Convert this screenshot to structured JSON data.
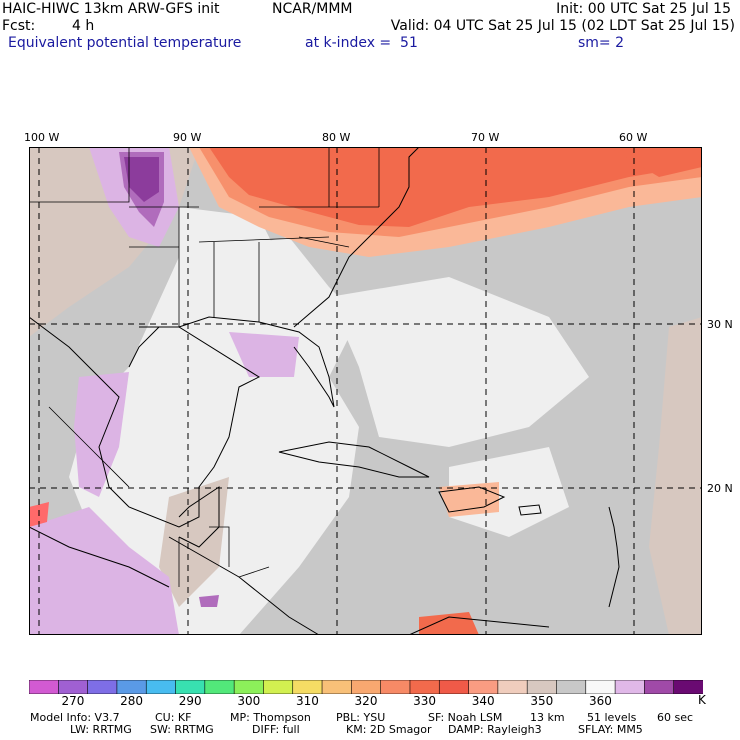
{
  "header": {
    "model_title": "HAIC-HIWC 13km ARW-GFS init",
    "center": "NCAR/MMM",
    "init": "Init: 00 UTC Sat 25 Jul 15",
    "fcst_label": "Fcst:",
    "fcst_value": "4 h",
    "valid": "Valid: 04 UTC Sat 25 Jul 15 (02 LDT Sat 25 Jul 15)",
    "field": "Equivalent potential temperature",
    "level": "at k-index =  51",
    "smooth": "sm= 2"
  },
  "map": {
    "lon_labels": [
      "100 W",
      "90 W",
      "80 W",
      "70 W",
      "60 W"
    ],
    "lat_labels": [
      "30 N",
      "20 N"
    ],
    "colors": {
      "warm_red": "#f26a4c",
      "warm_orange": "#f7906c",
      "warm_peach": "#fab898",
      "neutral_tan": "#d7c8c0",
      "neutral_gray": "#c8c8c8",
      "light_gray": "#efefef",
      "light_purple": "#dcb4e4",
      "mid_purple": "#b06cbc",
      "dark_purple": "#8c3c9c",
      "pink": "#ff6a6a"
    }
  },
  "colorbar": {
    "colors": [
      "#d25ad2",
      "#a060d2",
      "#7e6ee6",
      "#5a9ae6",
      "#48bcf0",
      "#38e0b0",
      "#52e87a",
      "#8cf05a",
      "#d2f050",
      "#f5dc64",
      "#f8c078",
      "#f8a870",
      "#f78a66",
      "#f26a4c",
      "#f05a48",
      "#fa9c82",
      "#f0cdbd",
      "#d8c8c0",
      "#c8c8c8",
      "#f8f8f8",
      "#e0b8e8",
      "#a04aa8",
      "#6a0a72"
    ],
    "labels": [
      "270",
      "280",
      "290",
      "300",
      "310",
      "320",
      "330",
      "340",
      "350",
      "360"
    ],
    "unit": "K"
  },
  "footer": {
    "line1": [
      "Model Info: V3.7",
      "CU: KF",
      "MP: Thompson",
      "PBL: YSU",
      "SF: Noah LSM",
      "13 km",
      "51 levels",
      "60 sec"
    ],
    "line2": [
      "LW: RRTMG",
      "SW: RRTMG",
      "DIFF: full",
      "KM: 2D Smagor",
      "DAMP: Rayleigh3",
      "SFLAY: MM5"
    ]
  }
}
